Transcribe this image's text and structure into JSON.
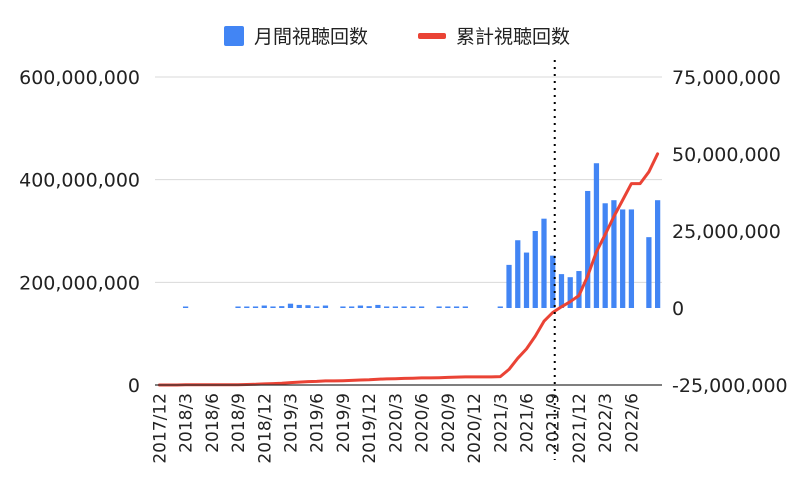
{
  "chart_data": {
    "type": "bar",
    "legend_position": "top",
    "grid": true,
    "colors": {
      "bar": "#4285f4",
      "line": "#ea4335",
      "grid": "#d9d9d9",
      "text": "#222222",
      "marker": "#000000"
    },
    "categories": [
      "2017/12",
      "2018/1",
      "2018/2",
      "2018/3",
      "2018/4",
      "2018/5",
      "2018/6",
      "2018/7",
      "2018/8",
      "2018/9",
      "2018/10",
      "2018/11",
      "2018/12",
      "2019/1",
      "2019/2",
      "2019/3",
      "2019/4",
      "2019/5",
      "2019/6",
      "2019/7",
      "2019/8",
      "2019/9",
      "2019/10",
      "2019/11",
      "2019/12",
      "2020/1",
      "2020/2",
      "2020/3",
      "2020/4",
      "2020/5",
      "2020/6",
      "2020/7",
      "2020/8",
      "2020/9",
      "2020/10",
      "2020/11",
      "2020/12",
      "2021/1",
      "2021/2",
      "2021/3",
      "2021/4",
      "2021/5",
      "2021/6",
      "2021/7",
      "2021/8",
      "2021/9",
      "2021/10",
      "2021/11",
      "2021/12",
      "2022/1",
      "2022/2",
      "2022/3",
      "2022/4",
      "2022/5",
      "2022/6",
      "2022/7",
      "2022/8",
      "2022/9"
    ],
    "tick_labels": [
      "2017/12",
      "2018/3",
      "2018/6",
      "2018/9",
      "2018/12",
      "2019/3",
      "2019/6",
      "2019/9",
      "2019/12",
      "2020/3",
      "2020/6",
      "2020/9",
      "2020/12",
      "2021/3",
      "2021/6",
      "2021/9",
      "2021/12",
      "2022/3",
      "2022/6"
    ],
    "series": [
      {
        "name": "月間視聴回数",
        "kind": "bar",
        "axis": "right",
        "values": [
          0,
          0,
          0,
          300000,
          0,
          0,
          0,
          0,
          0,
          300000,
          300000,
          500000,
          800000,
          500000,
          600000,
          1400000,
          1000000,
          900000,
          500000,
          800000,
          0,
          500000,
          500000,
          800000,
          600000,
          1000000,
          500000,
          500000,
          500000,
          500000,
          500000,
          0,
          500000,
          500000,
          500000,
          500000,
          0,
          0,
          0,
          500000,
          14000000,
          22000000,
          18000000,
          25000000,
          29000000,
          17000000,
          11000000,
          10000000,
          12000000,
          38000000,
          47000000,
          34000000,
          35000000,
          32000000,
          32000000,
          0,
          23000000,
          35000000
        ]
      },
      {
        "name": "累計視聴回数",
        "kind": "line",
        "axis": "left",
        "values": [
          0,
          0,
          0,
          300000,
          300000,
          300000,
          300000,
          300000,
          300000,
          600000,
          900000,
          1400000,
          2200000,
          2700000,
          3300000,
          4700000,
          5700000,
          6600000,
          7100000,
          7900000,
          7900000,
          8400000,
          8900000,
          9700000,
          10300000,
          11300000,
          11800000,
          12300000,
          12800000,
          13300000,
          13800000,
          13800000,
          14300000,
          14800000,
          15300000,
          15800000,
          15800000,
          15800000,
          15800000,
          16300000,
          30300000,
          52300000,
          70300000,
          95300000,
          124300000,
          141300000,
          152300000,
          162300000,
          174300000,
          212300000,
          259300000,
          293300000,
          328300000,
          360300000,
          392300000,
          392300000,
          415300000,
          450300000
        ]
      }
    ],
    "marker_category": "2021/9",
    "left_axis": {
      "min": 0,
      "max": 600000000,
      "ticks": [
        0,
        200000000,
        400000000,
        600000000
      ],
      "tick_labels": [
        "0",
        "200,000,000",
        "400,000,000",
        "600,000,000"
      ]
    },
    "right_axis": {
      "min": -25000000,
      "max": 75000000,
      "ticks": [
        -25000000,
        0,
        25000000,
        50000000,
        75000000
      ],
      "tick_labels": [
        "-25,000,000",
        "0",
        "25,000,000",
        "50,000,000",
        "75,000,000"
      ]
    }
  }
}
